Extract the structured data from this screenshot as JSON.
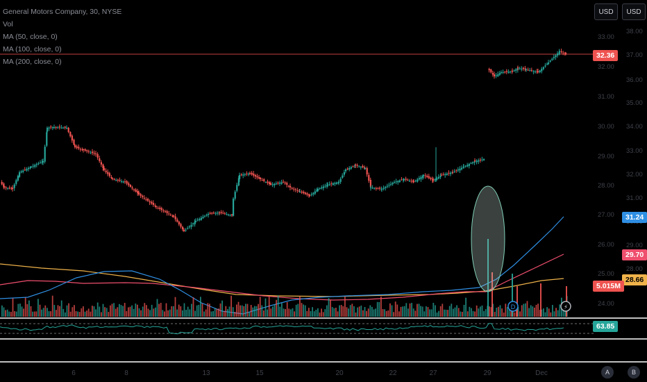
{
  "legend": {
    "title": "General Motors Company, 30, NYSE",
    "vol": "Vol",
    "ma50": "MA (50, close, 0)",
    "ma100": "MA (100, close, 0)",
    "ma200": "MA (200, close, 0)"
  },
  "buttons": {
    "currency_left": "USD",
    "currency_right": "USD",
    "auto": "A",
    "log": "B"
  },
  "badges": {
    "last_price": "32.36",
    "ma50": "31.24",
    "ma100": "29.70",
    "ma200": "28.66",
    "volume": "5.015M",
    "rsi": "63.85"
  },
  "colors": {
    "up": "#26a69a",
    "down": "#ef5350",
    "ma50": "#2f8fe3",
    "ma100": "#ef4f6e",
    "ma200": "#f0b34a",
    "rsi": "#26a69a",
    "price_line": "#ef5350",
    "background": "#000000"
  },
  "events": {
    "dividend": "D",
    "earnings": "⚡"
  },
  "chart_data": {
    "type": "candlestick",
    "left_axis_ticks": [
      "33.00",
      "32.00",
      "31.00",
      "30.00",
      "29.00",
      "28.00",
      "27.00",
      "26.00",
      "25.00",
      "24.00"
    ],
    "right_axis_ticks": [
      "38.00",
      "37.00",
      "36.00",
      "35.00",
      "34.00",
      "33.00",
      "32.00",
      "31.00",
      "30.00",
      "29.00",
      "28.00"
    ],
    "x_ticks": [
      "6",
      "8",
      "13",
      "15",
      "20",
      "22",
      "27",
      "29",
      "Dec"
    ],
    "last_price": 32.36,
    "ma50_last": 31.24,
    "ma100_last": 29.7,
    "ma200_last": 28.66,
    "volume_last": "5.015M",
    "rsi_last": 63.85
  }
}
